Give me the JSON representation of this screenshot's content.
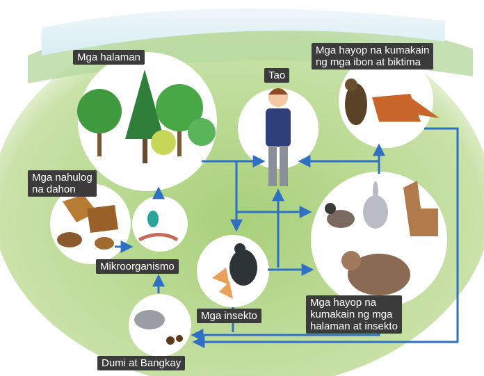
{
  "nodes": [
    {
      "label": [
        "Mga halaman"
      ]
    },
    {
      "label": [
        "Tao"
      ]
    },
    {
      "label": [
        "Mga hayop na kumakain",
        "ng mga ibon at biktima"
      ]
    },
    {
      "label": [
        "Mga nahulog",
        "na dahon"
      ]
    },
    {
      "label": [
        "Mikroorganismo"
      ]
    },
    {
      "label": [
        "Mga insekto"
      ]
    },
    {
      "label": [
        "Mga hayop na",
        "kumakain ng mga",
        "halaman at insekto"
      ]
    },
    {
      "label": [
        "Dumi at Bangkay"
      ]
    }
  ]
}
